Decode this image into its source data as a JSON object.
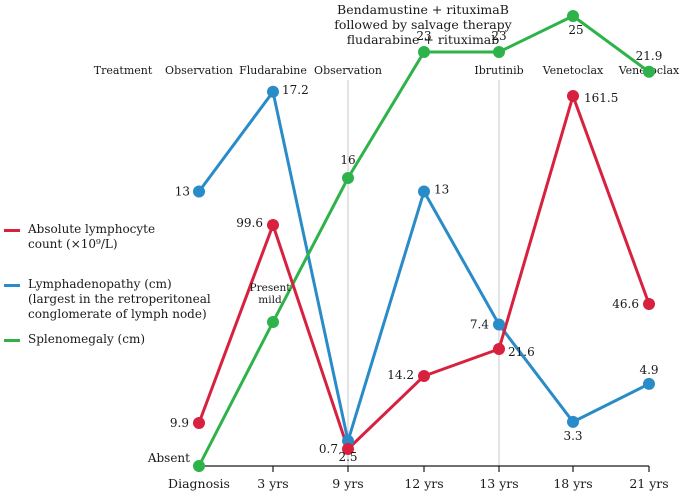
{
  "chart_data": {
    "type": "line",
    "title": "",
    "xlabel": "",
    "ylabel": "",
    "categories": [
      "Diagnosis",
      "3 yrs",
      "9 yrs",
      "12 yrs",
      "13 yrs",
      "18 yrs",
      "21 yrs"
    ],
    "header_note": [
      "Bendamustine + rituximaB",
      "followed by salvage therapy",
      "fludarabine + rituximab"
    ],
    "treatment_title": "Treatment",
    "treatments": [
      "Observation",
      "Fludarabine",
      "Observation",
      "",
      "Ibrutinib",
      "Venetoclax",
      "Venetoclax"
    ],
    "grid": "vertical lines at 9 yrs and 13 yrs",
    "legend_position": "left",
    "series": [
      {
        "name": "Absolute lymphocyte count (×10⁹/L)",
        "legend_lines": [
          "Absolute lymphocyte",
          "count (×10⁹/L)"
        ],
        "color": "#d7213f",
        "values": [
          9.9,
          99.6,
          0.7,
          14.2,
          21.6,
          161.5,
          46.6
        ],
        "labels": [
          "9.9",
          "99.6",
          "0.7",
          "14.2",
          "21.6",
          "161.5",
          "46.6"
        ]
      },
      {
        "name": "Lymphadenopathy (cm) (largest in the retroperitoneal conglomerate of lymph node)",
        "legend_lines": [
          "Lymphadenopathy (cm)",
          "(largest in the retroperitoneal",
          "conglomerate of lymph node)"
        ],
        "color": "#2a8bc9",
        "values": [
          13,
          17.2,
          2.5,
          13,
          7.4,
          3.3,
          4.9
        ],
        "labels": [
          "13",
          "17.2",
          "2.5",
          "13",
          "7.4",
          "3.3",
          "4.9"
        ]
      },
      {
        "name": "Splenomegaly (cm)",
        "legend_lines": [
          "Splenomegaly (cm)"
        ],
        "color": "#2db34a",
        "values": [
          0,
          8,
          16,
          23,
          23,
          25,
          21.9
        ],
        "labels": [
          "Absent",
          "Present mild",
          "16",
          "23",
          "23",
          "25",
          "21.9"
        ]
      }
    ]
  }
}
